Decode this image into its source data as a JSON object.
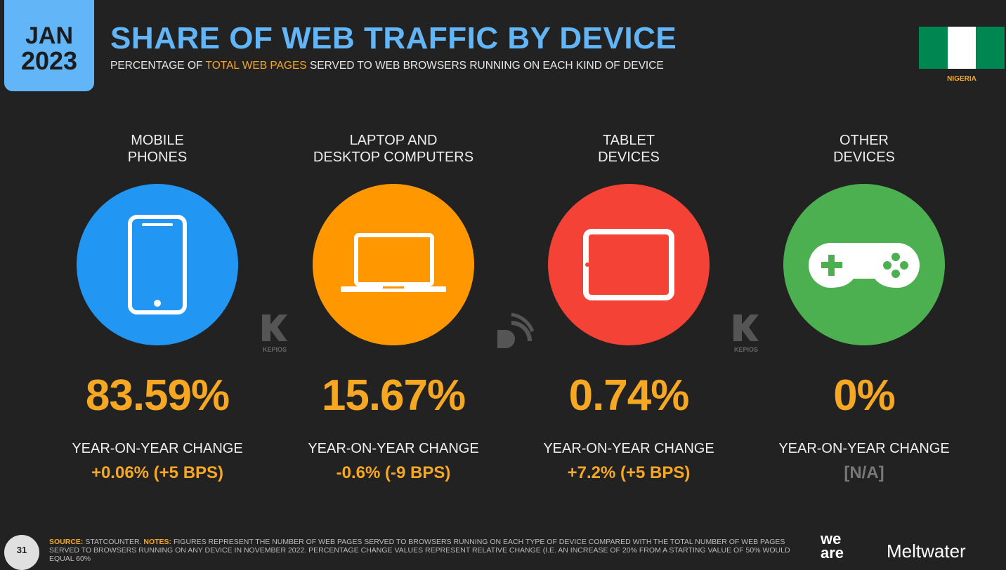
{
  "header": {
    "badge_month": "JAN",
    "badge_year": "2023",
    "title": "SHARE OF WEB TRAFFIC BY DEVICE",
    "subtitle_parts": [
      "PERCENTAGE OF ",
      "TOTAL WEB PAGES",
      " SERVED TO WEB BROWSERS RUNNING ON EACH KIND OF DEVICE"
    ],
    "country": "NIGERIA"
  },
  "devices": [
    {
      "label_lines": [
        "MOBILE",
        "PHONES"
      ],
      "share": "83.59%",
      "change_label": "YEAR-ON-YEAR CHANGE",
      "change": "+0.06% (+5 BPS)"
    },
    {
      "label_lines": [
        "LAPTOP AND",
        "DESKTOP COMPUTERS"
      ],
      "share": "15.67%",
      "change_label": "YEAR-ON-YEAR CHANGE",
      "change": "-0.6% (-9 BPS)"
    },
    {
      "label_lines": [
        "TABLET",
        "DEVICES"
      ],
      "share": "0.74%",
      "change_label": "YEAR-ON-YEAR CHANGE",
      "change": "+7.2% (+5 BPS)"
    },
    {
      "label_lines": [
        "OTHER",
        "DEVICES"
      ],
      "share": "0%",
      "change_label": "YEAR-ON-YEAR CHANGE",
      "change": "[N/A]"
    }
  ],
  "watermark": "KEPIOS",
  "footer": {
    "page": "31",
    "source_label": "SOURCE:",
    "source": "STATCOUNTER.",
    "notes_label": "NOTES:",
    "notes": "FIGURES REPRESENT THE NUMBER OF WEB PAGES SERVED TO BROWSERS RUNNING ON EACH TYPE OF DEVICE COMPARED WITH THE TOTAL NUMBER OF WEB PAGES SERVED TO BROWSERS RUNNING ON ANY DEVICE IN NOVEMBER 2022. PERCENTAGE CHANGE VALUES REPRESENT RELATIVE CHANGE (I.E. AN INCREASE OF 20% FROM A STARTING VALUE OF 50% WOULD EQUAL 60%",
    "brand1": "we are",
    "brand2": "Meltwater"
  }
}
